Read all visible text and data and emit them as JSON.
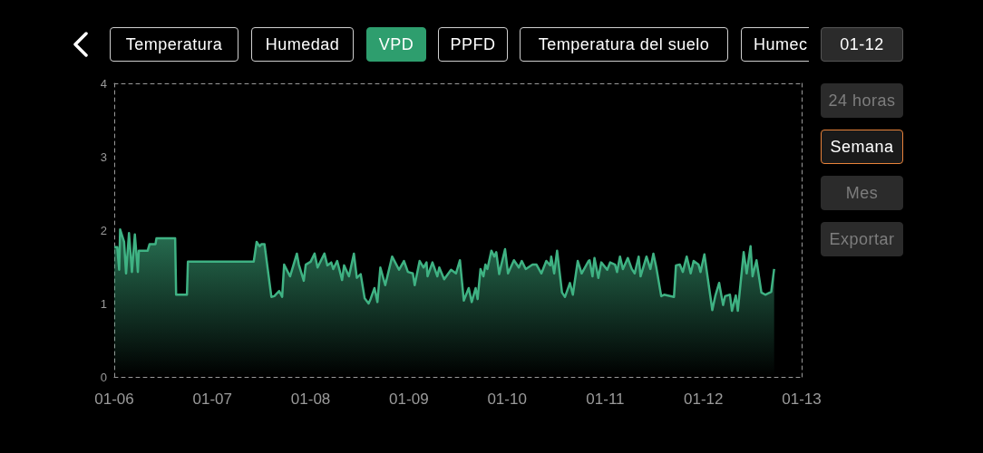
{
  "chart_data": {
    "type": "area",
    "color": "#3fb283",
    "x": [
      "--01-06T00:00",
      "--01-06T00:43",
      "--01-06T01:12",
      "--01-06T01:26",
      "--01-06T02:24",
      "--01-06T02:53",
      "--01-06T03:36",
      "--01-06T04:19",
      "--01-06T05:02",
      "--01-06T05:46",
      "--01-06T06:00",
      "--01-06T08:10",
      "--01-06T08:38",
      "--01-06T10:05",
      "--01-06T10:19",
      "--01-06T14:53",
      "--01-06T15:07",
      "--01-06T17:46",
      "--01-06T18:00",
      "--01-07T10:05",
      "--01-07T10:48",
      "--01-07T11:31",
      "--01-07T12:00",
      "--01-07T12:43",
      "--01-07T14:24",
      "--01-07T15:07",
      "--01-07T16:19",
      "--01-07T17:02",
      "--01-07T17:31",
      "--01-07T18:58",
      "--01-07T20:38",
      "--01-07T21:07",
      "--01-07T22:19",
      "--01-07T22:48",
      "--01-08T00:00",
      "--01-08T00:58",
      "--01-08T01:41",
      "--01-08T03:22",
      "--01-08T04:05",
      "--01-08T05:02",
      "--01-08T05:31",
      "--01-08T06:29",
      "--01-08T07:41",
      "--01-08T08:10",
      "--01-08T09:22",
      "--01-08T10:34",
      "--01-08T11:17",
      "--01-08T12:14",
      "--01-08T13:12",
      "--01-08T14:10",
      "--01-08T14:38",
      "--01-08T15:36",
      "--01-08T16:19",
      "--01-08T17:02",
      "--01-08T18:14",
      "--01-08T19:55",
      "--01-08T21:36",
      "--01-08T22:48",
      "--01-08T23:46",
      "--01-09T00:58",
      "--01-09T01:26",
      "--01-09T02:38",
      "--01-09T03:36",
      "--01-09T04:19",
      "--01-09T04:34",
      "--01-09T05:46",
      "--01-09T06:58",
      "--01-09T07:26",
      "--01-09T08:38",
      "--01-09T10:19",
      "--01-09T11:31",
      "--01-09T12:29",
      "--01-09T13:26",
      "--01-09T14:38",
      "--01-09T15:22",
      "--01-09T16:19",
      "--01-09T16:48",
      "--01-09T17:31",
      "--01-09T18:14",
      "--01-09T18:43",
      "--01-09T19:12",
      "--01-09T20:10",
      "--01-09T20:53",
      "--01-09T21:22",
      "--01-09T22:05",
      "--01-09T22:34",
      "--01-09T23:31",
      "--01-10T00:14",
      "--01-10T01:41",
      "--01-10T02:53",
      "--01-10T03:36",
      "--01-10T04:34",
      "--01-10T06:14",
      "--01-10T07:12",
      "--01-10T08:24",
      "--01-10T09:36",
      "--01-10T10:34",
      "--01-10T10:48",
      "--01-10T11:31",
      "--01-10T12:14",
      "--01-10T13:26",
      "--01-10T14:10",
      "--01-10T15:22",
      "--01-10T16:05",
      "--01-10T17:17",
      "--01-10T18:14",
      "--01-10T19:55",
      "--01-10T20:10",
      "--01-10T20:53",
      "--01-10T21:22",
      "--01-10T22:19",
      "--01-10T23:02",
      "--01-11T00:29",
      "--01-11T01:12",
      "--01-11T02:24",
      "--01-11T02:53",
      "--01-11T03:36",
      "--01-11T04:19",
      "--01-11T05:31",
      "--01-11T06:29",
      "--01-11T07:12",
      "--01-11T08:10",
      "--01-11T08:38",
      "--01-11T10:05",
      "--01-11T11:02",
      "--01-11T11:46",
      "--01-11T12:29",
      "--01-11T13:41",
      "--01-11T14:24",
      "--01-11T16:48",
      "--01-11T17:17",
      "--01-11T18:14",
      "--01-11T18:58",
      "--01-11T19:55",
      "--01-11T20:53",
      "--01-11T21:36",
      "--01-11T22:48",
      "--01-11T23:17",
      "--01-12T00:14",
      "--01-12T01:41",
      "--01-12T02:10",
      "--01-12T02:53",
      "--01-12T03:50",
      "--01-12T04:48",
      "--01-12T05:17",
      "--01-12T06:29",
      "--01-12T06:58",
      "--01-12T07:55",
      "--01-12T08:24",
      "--01-12T09:50",
      "--01-12T10:34",
      "--01-12T11:31",
      "--01-12T12:00",
      "--01-12T12:58",
      "--01-12T14:10",
      "--01-12T15:07",
      "--01-12T16:34",
      "--01-12T17:17"
    ],
    "values": [
      1.77,
      1.77,
      1.46,
      2.01,
      1.84,
      1.41,
      1.96,
      1.43,
      1.94,
      1.43,
      1.72,
      1.72,
      1.81,
      1.81,
      1.89,
      1.89,
      1.12,
      1.12,
      1.57,
      1.57,
      1.84,
      1.78,
      1.81,
      1.81,
      1.09,
      1.1,
      1.17,
      1.09,
      1.53,
      1.37,
      1.68,
      1.53,
      1.31,
      1.53,
      1.57,
      1.68,
      1.49,
      1.68,
      1.52,
      1.56,
      1.47,
      1.58,
      1.32,
      1.52,
      1.37,
      1.68,
      1.35,
      1.4,
      1.07,
      1.0,
      1.06,
      1.21,
      1.02,
      1.49,
      1.25,
      1.64,
      1.46,
      1.58,
      1.43,
      1.41,
      1.25,
      1.58,
      1.49,
      1.56,
      1.37,
      1.56,
      1.37,
      1.49,
      1.33,
      1.46,
      1.41,
      1.59,
      1.04,
      1.21,
      1.02,
      1.21,
      1.06,
      1.47,
      1.37,
      1.53,
      1.47,
      1.72,
      1.64,
      1.7,
      1.4,
      1.52,
      1.74,
      1.41,
      1.59,
      1.49,
      1.58,
      1.47,
      1.53,
      1.53,
      1.41,
      1.58,
      1.52,
      1.64,
      1.41,
      1.72,
      1.15,
      1.09,
      1.28,
      1.12,
      1.58,
      1.41,
      1.58,
      1.59,
      1.37,
      1.62,
      1.35,
      1.56,
      1.46,
      1.56,
      1.53,
      1.43,
      1.64,
      1.47,
      1.62,
      1.47,
      1.41,
      1.64,
      1.37,
      1.64,
      1.47,
      1.68,
      1.49,
      1.1,
      1.12,
      1.09,
      1.52,
      1.53,
      1.43,
      1.64,
      1.41,
      1.58,
      1.53,
      1.43,
      1.67,
      1.1,
      0.91,
      1.1,
      1.28,
      0.98,
      1.1,
      1.12,
      0.9,
      1.11,
      0.9,
      1.7,
      1.41,
      1.78,
      1.37,
      1.59,
      1.15,
      1.12,
      1.16,
      1.47
    ],
    "xlim": [
      "--01-06",
      "--01-13"
    ],
    "xticks": [
      {
        "value": "--01-06",
        "label": "01-06"
      },
      {
        "value": "--01-07",
        "label": "01-07"
      },
      {
        "value": "--01-08",
        "label": "01-08"
      },
      {
        "value": "--01-09",
        "label": "01-09"
      },
      {
        "value": "--01-10",
        "label": "01-10"
      },
      {
        "value": "--01-11",
        "label": "01-11"
      },
      {
        "value": "--01-12",
        "label": "01-12"
      },
      {
        "value": "--01-13",
        "label": "01-13"
      }
    ],
    "ylim": [
      0,
      4
    ],
    "yticks": [
      0,
      1,
      2,
      3,
      4
    ],
    "annotations": [
      "Temperatura",
      "Humedad",
      "VPD",
      "PPFD",
      "Temperatura del suelo",
      "Humec",
      "01-12",
      "24 horas",
      "Semana",
      "Mes",
      "Exportar"
    ]
  }
}
